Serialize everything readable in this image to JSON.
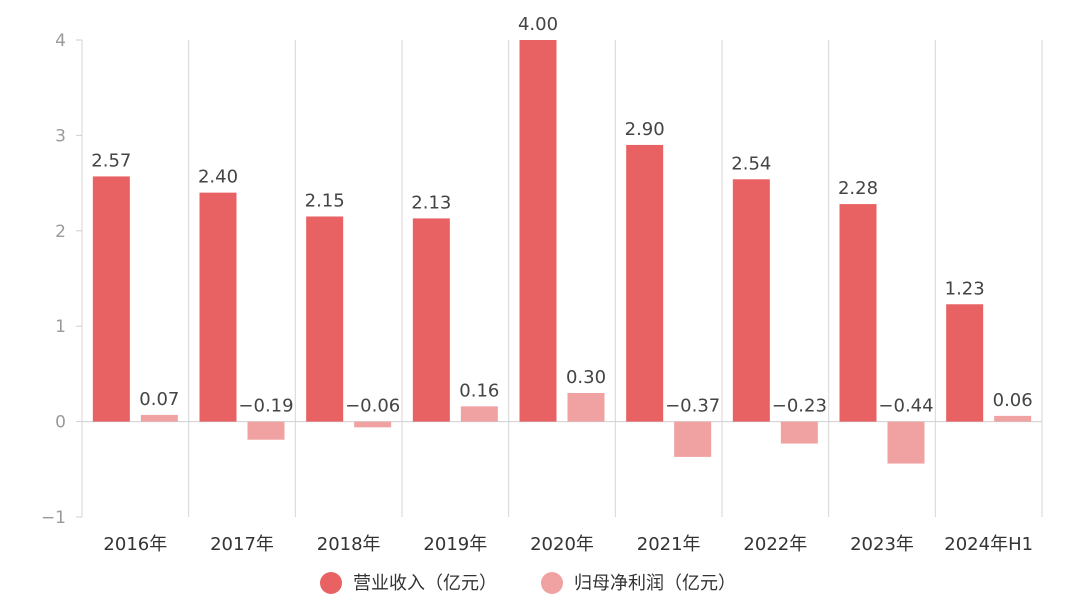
{
  "chart_data": {
    "type": "bar",
    "categories": [
      "2016年",
      "2017年",
      "2018年",
      "2019年",
      "2020年",
      "2021年",
      "2022年",
      "2023年",
      "2024年H1"
    ],
    "series": [
      {
        "name": "营业收入（亿元）",
        "color": "#e86163",
        "values": [
          2.57,
          2.4,
          2.15,
          2.13,
          4.0,
          2.9,
          2.54,
          2.28,
          1.23
        ],
        "labels": [
          "2.57",
          "2.40",
          "2.15",
          "2.13",
          "4.00",
          "2.90",
          "2.54",
          "2.28",
          "1.23"
        ]
      },
      {
        "name": "归母净利润（亿元）",
        "color": "#f0a2a3",
        "values": [
          0.07,
          -0.19,
          -0.06,
          0.16,
          0.3,
          -0.37,
          -0.23,
          -0.44,
          0.06
        ],
        "labels": [
          "0.07",
          "−0.19",
          "−0.06",
          "0.16",
          "0.30",
          "−0.37",
          "−0.23",
          "−0.44",
          "0.06"
        ]
      }
    ],
    "ylim": [
      -1,
      4
    ],
    "yticks": [
      "−1",
      "0",
      "1",
      "2",
      "3",
      "4"
    ],
    "ytick_values": [
      -1,
      0,
      1,
      2,
      3,
      4
    ],
    "grid": "vertical category separators",
    "legend_position": "bottom-center"
  }
}
